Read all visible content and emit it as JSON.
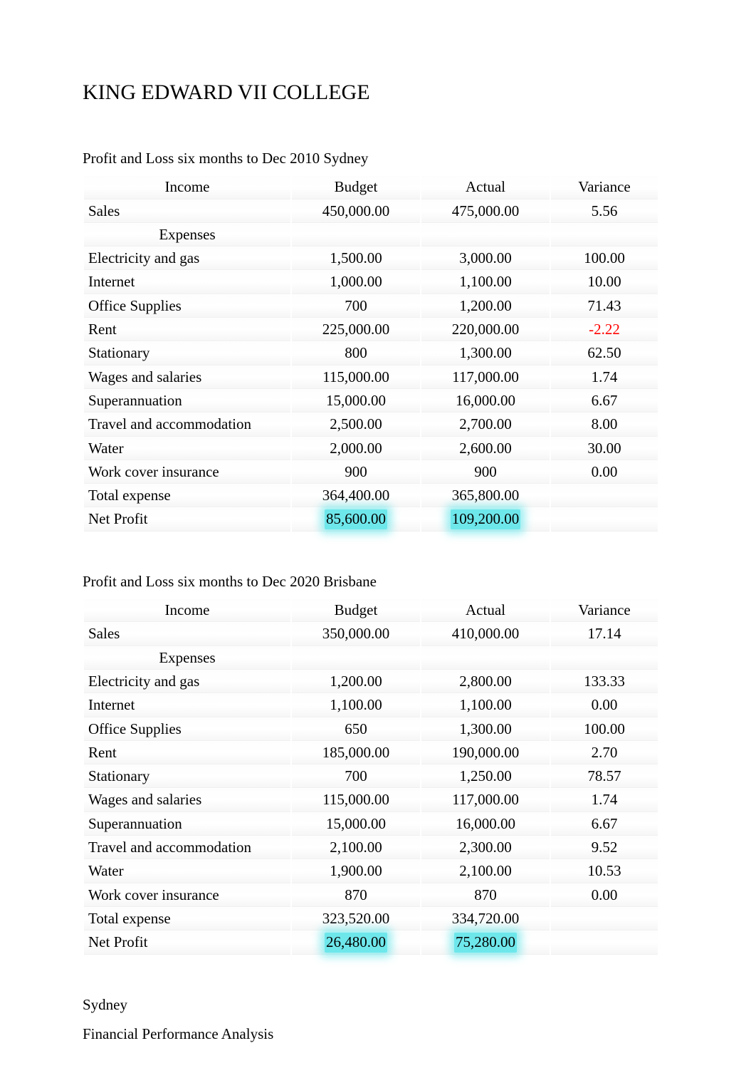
{
  "page": {
    "title": "KING EDWARD VII COLLEGE"
  },
  "colors": {
    "highlight_bg": "#6ee7eb",
    "highlight_glow": "rgba(110,231,235,0.7)",
    "negative_text": "#ff0000",
    "text": "#000000",
    "background": "#ffffff",
    "row_gradient_top": "#fdfdfd",
    "row_gradient_bottom": "#f6f6f6"
  },
  "typography": {
    "font_family": "Times New Roman",
    "title_fontsize": 30,
    "body_fontsize": 21
  },
  "tables": [
    {
      "caption": "Profit and Loss six months to Dec 2010 Sydney",
      "columns": [
        "Income",
        "Budget",
        "Actual",
        "Variance"
      ],
      "income_label": "Income",
      "expenses_label": "Expenses",
      "rows_income": [
        {
          "label": "Sales",
          "budget": "450,000.00",
          "actual": "475,000.00",
          "variance": "5.56"
        }
      ],
      "rows_expenses": [
        {
          "label": "Electricity and gas",
          "budget": "1,500.00",
          "actual": "3,000.00",
          "variance": "100.00"
        },
        {
          "label": "Internet",
          "budget": "1,000.00",
          "actual": "1,100.00",
          "variance": "10.00"
        },
        {
          "label": "Office Supplies",
          "budget": "700",
          "actual": "1,200.00",
          "variance": "71.43"
        },
        {
          "label": "Rent",
          "budget": "225,000.00",
          "actual": "220,000.00",
          "variance": "-2.22",
          "negative": true
        },
        {
          "label": "Stationary",
          "budget": "800",
          "actual": "1,300.00",
          "variance": "62.50"
        },
        {
          "label": "Wages and salaries",
          "budget": "115,000.00",
          "actual": "117,000.00",
          "variance": "1.74"
        },
        {
          "label": "Superannuation",
          "budget": "15,000.00",
          "actual": "16,000.00",
          "variance": "6.67"
        },
        {
          "label": "Travel and accommodation",
          "budget": "2,500.00",
          "actual": "2,700.00",
          "variance": "8.00"
        },
        {
          "label": "Water",
          "budget": "2,000.00",
          "actual": "2,600.00",
          "variance": "30.00"
        },
        {
          "label": "Work cover insurance",
          "budget": "900",
          "actual": "900",
          "variance": "0.00"
        }
      ],
      "totals": [
        {
          "label": "Total expense",
          "budget": "364,400.00",
          "actual": "365,800.00",
          "variance": ""
        },
        {
          "label": "Net Profit",
          "budget": "85,600.00",
          "actual": "109,200.00",
          "variance": "",
          "highlight": true
        }
      ]
    },
    {
      "caption": "Profit and Loss six months to Dec 2020 Brisbane",
      "columns": [
        "Income",
        "Budget",
        "Actual",
        "Variance"
      ],
      "income_label": "Income",
      "expenses_label": "Expenses",
      "rows_income": [
        {
          "label": "Sales",
          "budget": "350,000.00",
          "actual": "410,000.00",
          "variance": "17.14"
        }
      ],
      "rows_expenses": [
        {
          "label": "Electricity and gas",
          "budget": "1,200.00",
          "actual": "2,800.00",
          "variance": "133.33"
        },
        {
          "label": "Internet",
          "budget": "1,100.00",
          "actual": "1,100.00",
          "variance": "0.00"
        },
        {
          "label": "Office Supplies",
          "budget": "650",
          "actual": "1,300.00",
          "variance": "100.00"
        },
        {
          "label": "Rent",
          "budget": "185,000.00",
          "actual": "190,000.00",
          "variance": "2.70"
        },
        {
          "label": "Stationary",
          "budget": "700",
          "actual": "1,250.00",
          "variance": "78.57"
        },
        {
          "label": "Wages and salaries",
          "budget": "115,000.00",
          "actual": "117,000.00",
          "variance": "1.74"
        },
        {
          "label": "Superannuation",
          "budget": "15,000.00",
          "actual": "16,000.00",
          "variance": "6.67"
        },
        {
          "label": "Travel and accommodation",
          "budget": "2,100.00",
          "actual": "2,300.00",
          "variance": "9.52"
        },
        {
          "label": "Water",
          "budget": "1,900.00",
          "actual": "2,100.00",
          "variance": "10.53"
        },
        {
          "label": "Work cover insurance",
          "budget": "870",
          "actual": "870",
          "variance": "0.00"
        }
      ],
      "totals": [
        {
          "label": "Total expense",
          "budget": "323,520.00",
          "actual": "334,720.00",
          "variance": ""
        },
        {
          "label": "Net Profit",
          "budget": "26,480.00",
          "actual": "75,280.00",
          "variance": "",
          "highlight": true
        }
      ]
    }
  ],
  "footer": {
    "subheading": "Sydney",
    "analysis_heading": "Financial Performance Analysis"
  }
}
